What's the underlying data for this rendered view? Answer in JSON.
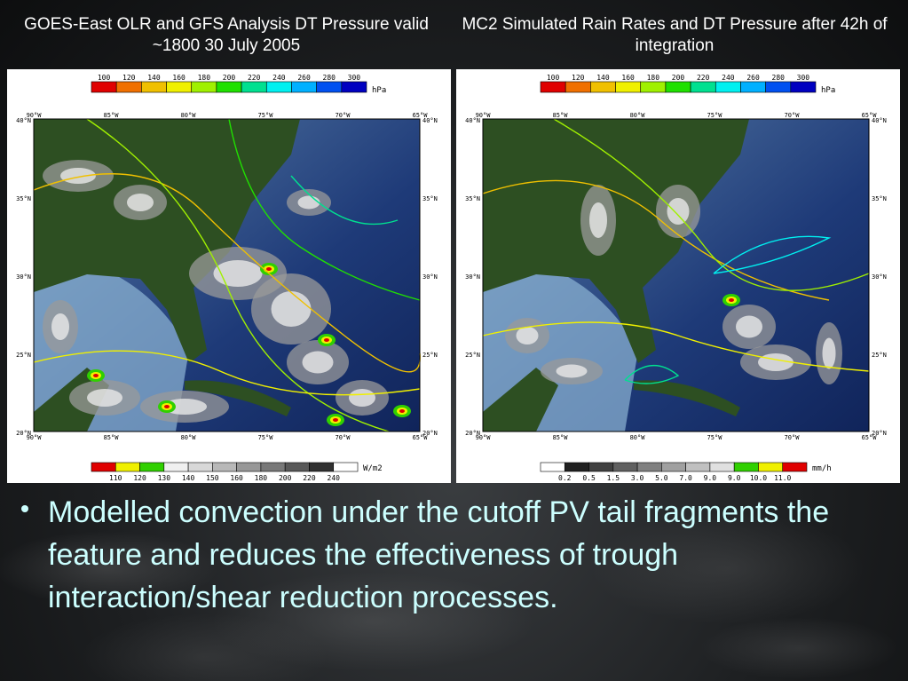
{
  "slide": {
    "left_title": "GOES-East OLR and GFS Analysis DT Pressure valid ~1800 30 July 2005",
    "right_title": "MC2 Simulated Rain Rates and DT Pressure after 42h of integration",
    "bullet": "Modelled convection under the cutoff PV tail fragments the feature and reduces the effectiveness of trough interaction/shear reduction processes."
  },
  "pressure_scale": {
    "labels": [
      "100",
      "120",
      "140",
      "160",
      "180",
      "200",
      "220",
      "240",
      "260",
      "280",
      "300"
    ],
    "unit": "hPa",
    "colors": [
      "#e00000",
      "#f07000",
      "#f0c000",
      "#f0f000",
      "#a0f000",
      "#20e000",
      "#00e090",
      "#00f0f0",
      "#00b0ff",
      "#0050f0",
      "#0000c0"
    ]
  },
  "olr_scale": {
    "labels": [
      "110",
      "120",
      "130",
      "140",
      "150",
      "160",
      "180",
      "200",
      "220",
      "240"
    ],
    "unit": "W/m2",
    "colors": [
      "#e00000",
      "#f0f000",
      "#30d000",
      "#f0f0f0",
      "#d8d8d8",
      "#b8b8b8",
      "#989898",
      "#787878",
      "#585858",
      "#303030",
      "#ffffff"
    ]
  },
  "rain_scale": {
    "labels": [
      "0.2",
      "0.5",
      "1.5",
      "3.0",
      "5.0",
      "7.0",
      "9.0",
      "9.0",
      "10.0",
      "11.0"
    ],
    "unit": "mm/h",
    "colors": [
      "#ffffff",
      "#202020",
      "#404040",
      "#606060",
      "#808080",
      "#a0a0a0",
      "#c0c0c0",
      "#e0e0e0",
      "#30d000",
      "#f0f000",
      "#e00000"
    ]
  },
  "axes": {
    "lon_labels": [
      "90°W",
      "85°W",
      "80°W",
      "75°W",
      "70°W",
      "65°W"
    ],
    "lat_labels": [
      "40°N",
      "35°N",
      "30°N",
      "25°N",
      "20°N"
    ]
  }
}
